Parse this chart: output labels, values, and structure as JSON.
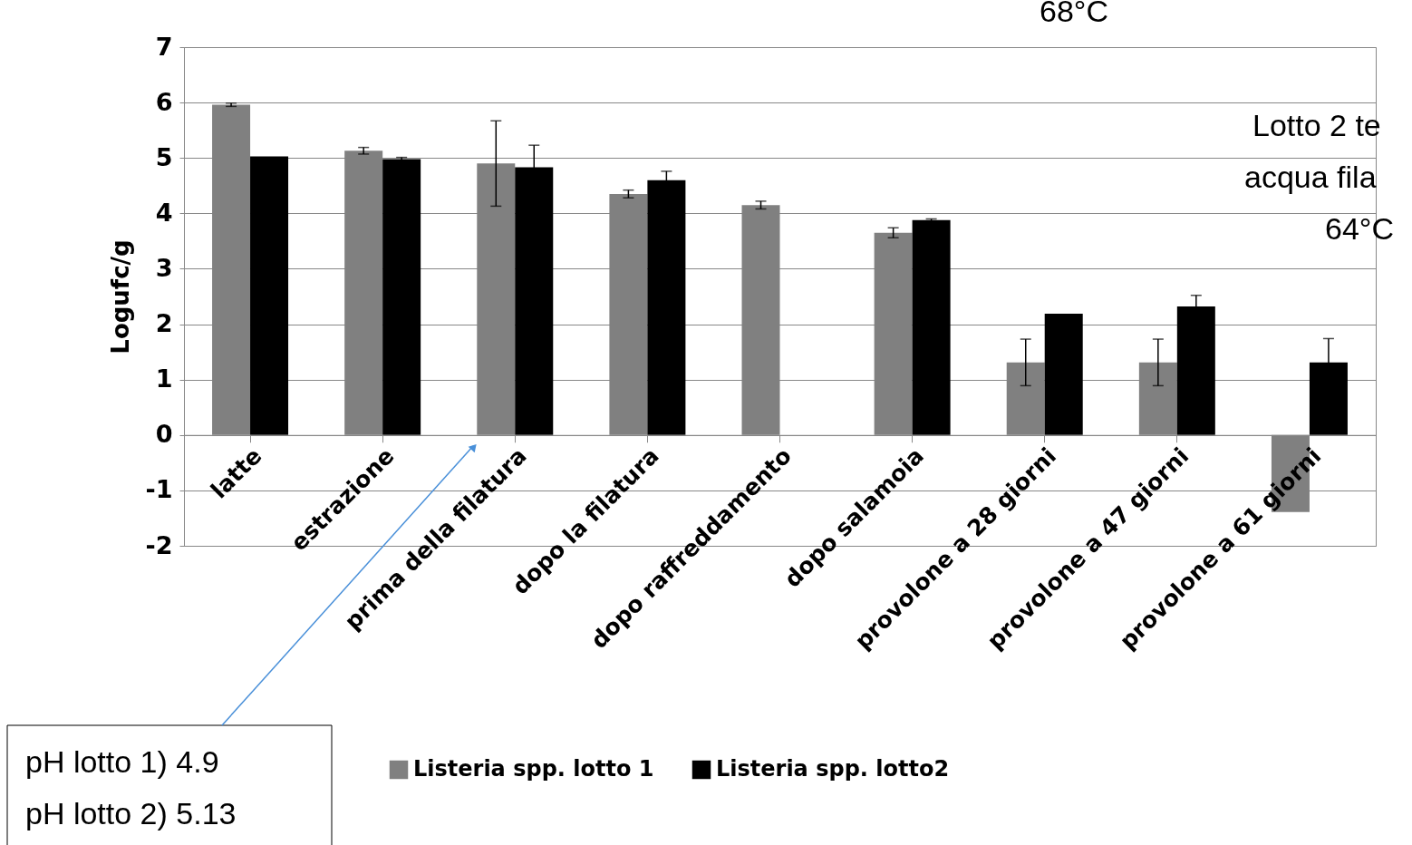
{
  "chart_data": {
    "type": "bar",
    "ylabel": "Logufc/g",
    "categories": [
      "latte",
      "estrazione",
      "prima della filatura",
      "dopo la filatura",
      "dopo raffreddamento",
      "dopo salamoia",
      "provolone a 28 giorni",
      "provolone a 47 giorni",
      "provolone a 61 giorni"
    ],
    "series": [
      {
        "name": "Listeria spp. lotto 1",
        "color": "#808080",
        "values": [
          5.96,
          5.13,
          4.9,
          4.35,
          4.15,
          3.65,
          1.31,
          1.31,
          -1.39
        ],
        "errors": [
          0.03,
          0.06,
          0.77,
          0.07,
          0.07,
          0.09,
          0.42,
          0.42,
          null
        ]
      },
      {
        "name": "Listeria spp. lotto2",
        "color": "#000000",
        "values": [
          5.03,
          4.98,
          4.83,
          4.6,
          null,
          3.88,
          2.19,
          2.32,
          1.31
        ],
        "errors": [
          null,
          0.03,
          0.4,
          0.16,
          null,
          0.02,
          null,
          0.2,
          0.43
        ]
      }
    ],
    "ylim": [
      -2,
      7
    ],
    "yticks": [
      -2,
      -1,
      0,
      1,
      2,
      3,
      4,
      5,
      6,
      7
    ],
    "grid": "y",
    "legend": "bottom",
    "annotations": [
      "68°C",
      "Lotto 2 te",
      "acqua fila",
      "64°C",
      "pH lotto 1) 4.9",
      "pH lotto 2) 5.13"
    ]
  }
}
